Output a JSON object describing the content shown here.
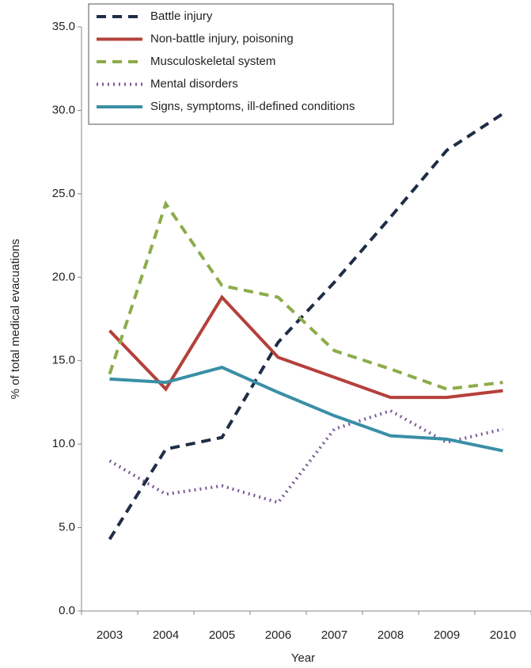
{
  "chart_data": {
    "type": "line",
    "xlabel": "Year",
    "ylabel": "% of total medical evacuations",
    "categories": [
      "2003",
      "2004",
      "2005",
      "2006",
      "2007",
      "2008",
      "2009",
      "2010"
    ],
    "ylim": [
      0,
      35
    ],
    "yticks": [
      {
        "value": 0,
        "label": "0.0"
      },
      {
        "value": 5,
        "label": "5.0"
      },
      {
        "value": 10,
        "label": "10.0"
      },
      {
        "value": 15,
        "label": "15.0"
      },
      {
        "value": 20,
        "label": "20.0"
      },
      {
        "value": 25,
        "label": "25.0"
      },
      {
        "value": 30,
        "label": "30.0"
      },
      {
        "value": 35,
        "label": "35.0"
      }
    ],
    "legend": "upper left",
    "series": [
      {
        "name": "Battle injury",
        "color": "#1f2d46",
        "dash": "dashed",
        "values": [
          4.3,
          9.7,
          10.4,
          16.1,
          19.7,
          23.6,
          27.6,
          29.8
        ]
      },
      {
        "name": "Non-battle injury, poisoning",
        "color": "#b5403b",
        "values": [
          16.8,
          13.3,
          18.8,
          15.2,
          14.0,
          12.8,
          12.8,
          13.2
        ]
      },
      {
        "name": "Musculoskeletal system",
        "color": "#8cac4a",
        "dash": "dashed",
        "values": [
          14.2,
          24.4,
          19.5,
          18.8,
          15.6,
          14.5,
          13.3,
          13.7
        ]
      },
      {
        "name": "Mental disorders",
        "color": "#7a5c9a",
        "dash": "dotted",
        "values": [
          9.0,
          7.0,
          7.5,
          6.5,
          10.9,
          12.0,
          10.1,
          10.9
        ]
      },
      {
        "name": "Signs, symptoms, ill-defined conditions",
        "color": "#3a8fa5",
        "values": [
          13.9,
          13.7,
          14.6,
          13.1,
          11.7,
          10.5,
          10.3,
          9.6
        ]
      }
    ]
  }
}
